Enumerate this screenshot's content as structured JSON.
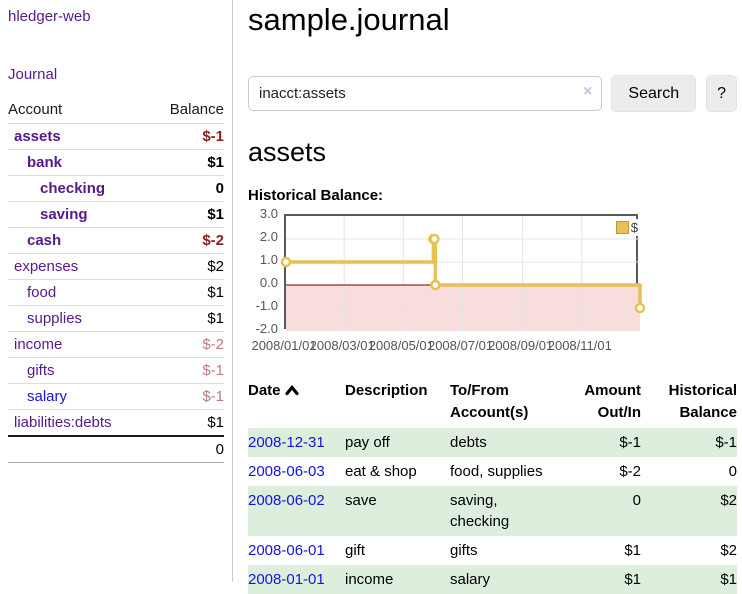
{
  "app": {
    "title": "hledger-web"
  },
  "sidebar": {
    "nav_journal": "Journal",
    "accounts_table": {
      "headers": {
        "account": "Account",
        "balance": "Balance"
      },
      "rows": [
        {
          "label": "assets",
          "level": 1,
          "bold": true,
          "link_color": "purple",
          "balance": "$-1",
          "balance_class": "neg-bold"
        },
        {
          "label": "bank",
          "level": 2,
          "bold": true,
          "link_color": "purple",
          "balance": "$1",
          "balance_class": "bold"
        },
        {
          "label": "checking",
          "level": 3,
          "bold": true,
          "link_color": "purple",
          "balance": "0",
          "balance_class": "bold"
        },
        {
          "label": "saving",
          "level": 3,
          "bold": true,
          "link_color": "purple",
          "balance": "$1",
          "balance_class": "bold"
        },
        {
          "label": "cash",
          "level": 2,
          "bold": true,
          "link_color": "purple",
          "balance": "$-2",
          "balance_class": "neg-bold"
        },
        {
          "label": "expenses",
          "level": 1,
          "bold": false,
          "link_color": "purple",
          "balance": "$2",
          "balance_class": "plain"
        },
        {
          "label": "food",
          "level": 2,
          "bold": false,
          "link_color": "purple",
          "balance": "$1",
          "balance_class": "plain"
        },
        {
          "label": "supplies",
          "level": 2,
          "bold": false,
          "link_color": "purple",
          "balance": "$1",
          "balance_class": "plain"
        },
        {
          "label": "income",
          "level": 1,
          "bold": false,
          "link_color": "purple",
          "balance": "$-2",
          "balance_class": "neg-light"
        },
        {
          "label": "gifts",
          "level": 2,
          "bold": false,
          "link_color": "purple",
          "balance": "$-1",
          "balance_class": "neg-light"
        },
        {
          "label": "salary",
          "level": 2,
          "bold": false,
          "link_color": "blue",
          "balance": "$-1",
          "balance_class": "neg-light"
        },
        {
          "label": "liabilities:debts",
          "level": 1,
          "bold": false,
          "link_color": "purple",
          "balance": "$1",
          "balance_class": "plain"
        }
      ],
      "total": "0"
    }
  },
  "main": {
    "title": "sample.journal",
    "search": {
      "value": "inacct:assets",
      "clear_icon": "×",
      "button": "Search",
      "help_button": "?"
    },
    "account_heading": "assets",
    "chart_label": "Historical Balance:"
  },
  "chart_data": {
    "type": "line",
    "step": true,
    "series": [
      {
        "name": "$",
        "color": "#e6c154",
        "points": [
          [
            "2008-01-01",
            1
          ],
          [
            "2008-06-01",
            2
          ],
          [
            "2008-06-02",
            2
          ],
          [
            "2008-06-03",
            0
          ],
          [
            "2008-12-31",
            -1
          ]
        ]
      }
    ],
    "x_range": [
      "2008-01-01",
      "2008-12-31"
    ],
    "ylim": [
      -2,
      3
    ],
    "y_tick_step": 1,
    "x_ticks": [
      {
        "date": "2008-01-01",
        "label": "2008/01/01"
      },
      {
        "date": "2008-03-01",
        "label": "2008/03/01"
      },
      {
        "date": "2008-05-01",
        "label": "2008/05/01"
      },
      {
        "date": "2008-07-01",
        "label": "2008/07/01"
      },
      {
        "date": "2008-09-01",
        "label": "2008/09/01"
      },
      {
        "date": "2008-11-01",
        "label": "2008/11/01"
      }
    ],
    "legend": {
      "label": "$",
      "position": "top-right"
    },
    "grid": true,
    "negative_region_color": "#f9dddd",
    "zero_line_color": "#992626"
  },
  "register": {
    "headers": {
      "date": "Date",
      "description": "Description",
      "accounts": "To/From Account(s)",
      "amount": "Amount Out/In",
      "balance": "Historical Balance"
    },
    "rows": [
      {
        "date": "2008-12-31",
        "description": "pay off",
        "accounts": "debts",
        "amount": "$-1",
        "amount_negative": true,
        "balance": "$-1",
        "balance_negative": true
      },
      {
        "date": "2008-06-03",
        "description": "eat & shop",
        "accounts": "food, supplies",
        "amount": "$-2",
        "amount_negative": true,
        "balance": "0",
        "balance_negative": false
      },
      {
        "date": "2008-06-02",
        "description": "save",
        "accounts": "saving, checking",
        "amount": "0",
        "amount_negative": false,
        "balance": "$2",
        "balance_negative": false
      },
      {
        "date": "2008-06-01",
        "description": "gift",
        "accounts": "gifts",
        "amount": "$1",
        "amount_negative": false,
        "balance": "$2",
        "balance_negative": false
      },
      {
        "date": "2008-01-01",
        "description": "income",
        "accounts": "salary",
        "amount": "$1",
        "amount_negative": false,
        "balance": "$1",
        "balance_negative": false
      }
    ]
  }
}
